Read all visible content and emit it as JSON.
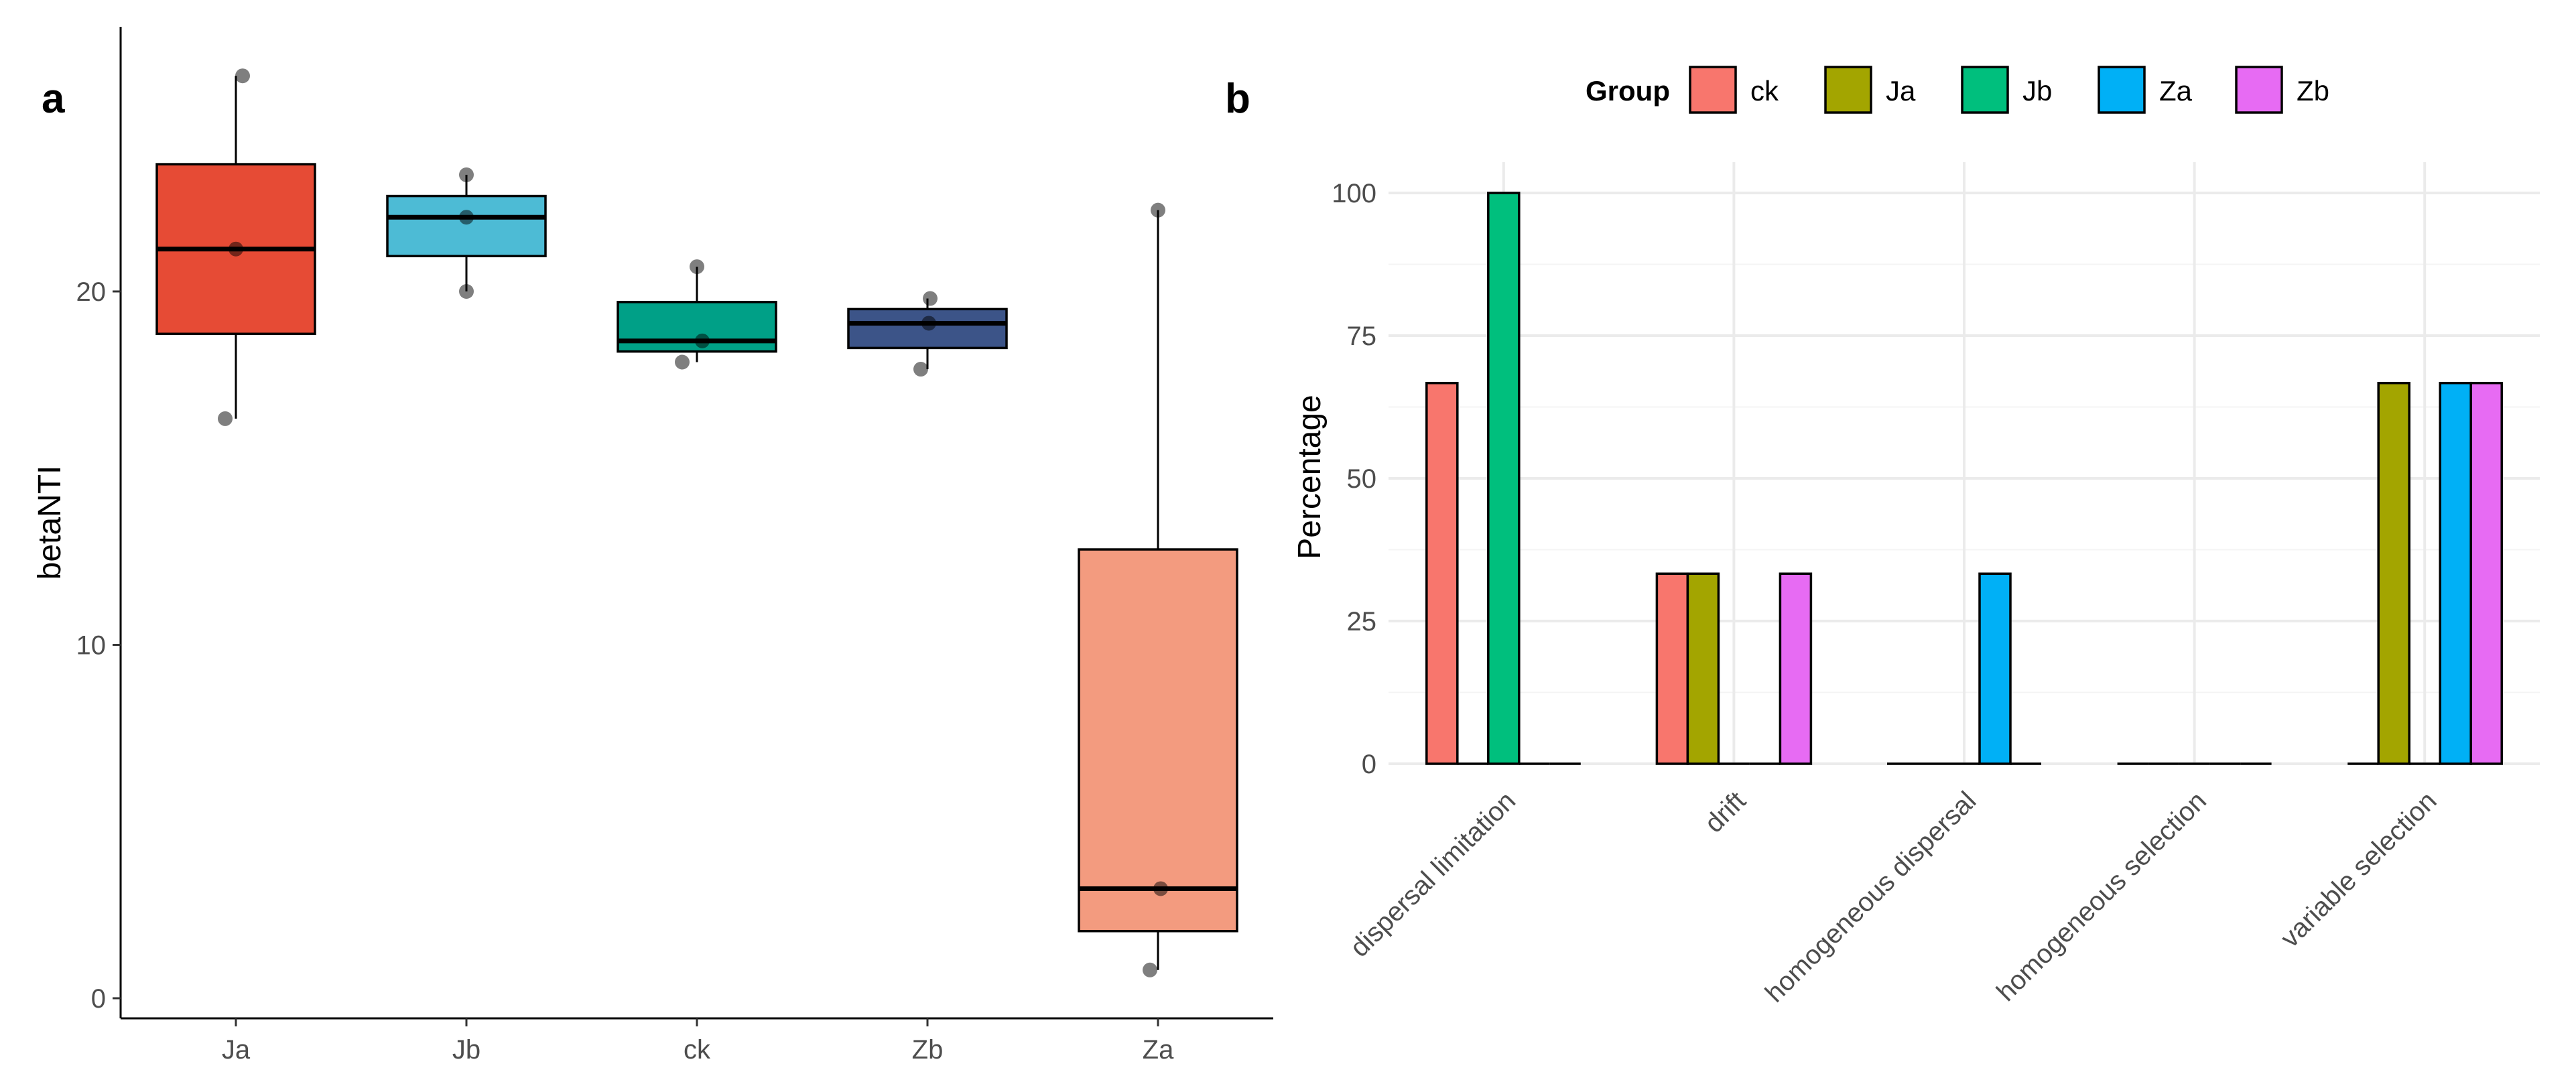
{
  "figure": {
    "panel_a_label": "a",
    "panel_b_label": "b"
  },
  "chart_data": [
    {
      "type": "box",
      "ylabel": "betaNTI",
      "xlabel": "",
      "ylim": [
        0,
        27
      ],
      "yticks": [
        0,
        10,
        20
      ],
      "categories": [
        "Ja",
        "Jb",
        "ck",
        "Zb",
        "Za"
      ],
      "colors": [
        "#E64B35",
        "#4DBBD5",
        "#00A087",
        "#3C5488",
        "#F39B7F"
      ],
      "boxes": [
        {
          "group": "Ja",
          "q1": 18.8,
          "median": 21.2,
          "q3": 23.6,
          "whisker_low": 16.4,
          "whisker_high": 26.1,
          "points": [
            16.4,
            21.2,
            26.1
          ]
        },
        {
          "group": "Jb",
          "q1": 21.0,
          "median": 22.1,
          "q3": 22.7,
          "whisker_low": 20.0,
          "whisker_high": 23.3,
          "points": [
            20.0,
            22.1,
            23.3
          ]
        },
        {
          "group": "ck",
          "q1": 18.3,
          "median": 18.6,
          "q3": 19.7,
          "whisker_low": 18.0,
          "whisker_high": 20.7,
          "points": [
            18.0,
            18.6,
            20.7
          ]
        },
        {
          "group": "Zb",
          "q1": 18.4,
          "median": 19.1,
          "q3": 19.5,
          "whisker_low": 17.8,
          "whisker_high": 19.8,
          "points": [
            17.8,
            19.1,
            19.8
          ]
        },
        {
          "group": "Za",
          "q1": 1.9,
          "median": 3.1,
          "q3": 12.7,
          "whisker_low": 0.8,
          "whisker_high": 22.3,
          "points": [
            0.8,
            3.1,
            22.3
          ]
        }
      ]
    },
    {
      "type": "bar",
      "ylabel": "Percentage",
      "xlabel": "",
      "ylim": [
        0,
        100
      ],
      "yticks": [
        0,
        25,
        50,
        75,
        100
      ],
      "categories": [
        "dispersal limitation",
        "drift",
        "homogeneous dispersal",
        "homogeneous selection",
        "variable selection"
      ],
      "legend": {
        "title": "Group",
        "position": "top"
      },
      "series": [
        {
          "name": "ck",
          "color": "#F8766D",
          "values": [
            66.7,
            33.3,
            0,
            0,
            0
          ]
        },
        {
          "name": "Ja",
          "color": "#A3A500",
          "values": [
            0,
            33.3,
            0,
            0,
            66.7
          ]
        },
        {
          "name": "Jb",
          "color": "#00BF7D",
          "values": [
            100,
            0,
            0,
            0,
            0
          ]
        },
        {
          "name": "Za",
          "color": "#00B0F6",
          "values": [
            0,
            0,
            33.3,
            0,
            66.7
          ]
        },
        {
          "name": "Zb",
          "color": "#E76BF3",
          "values": [
            0,
            33.3,
            0,
            0,
            66.7
          ]
        }
      ]
    }
  ]
}
